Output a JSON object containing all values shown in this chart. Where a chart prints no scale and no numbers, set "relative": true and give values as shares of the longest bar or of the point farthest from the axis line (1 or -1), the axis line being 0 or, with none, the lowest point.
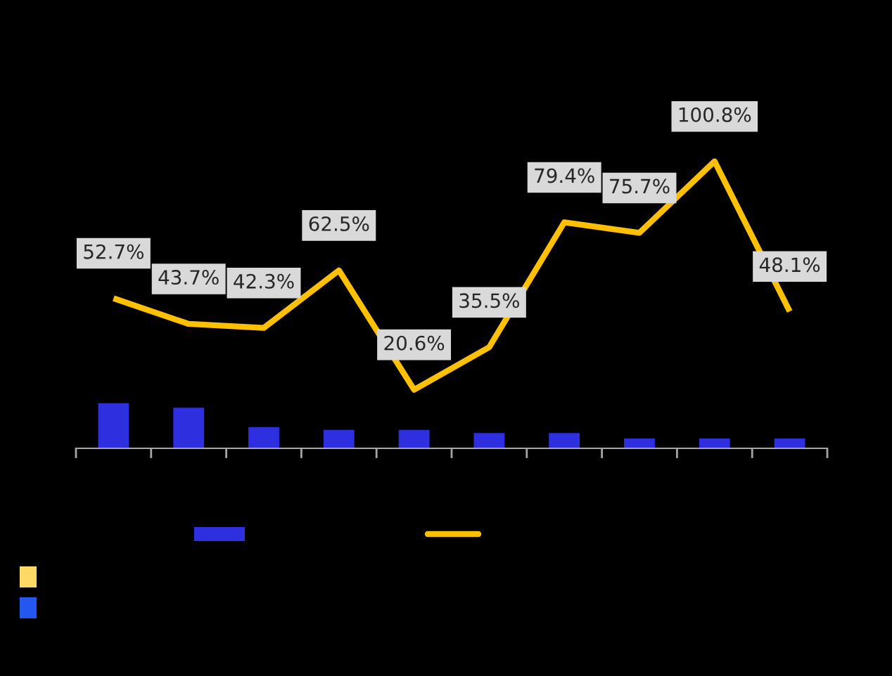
{
  "chart_data": [
    {
      "type": "bar",
      "relative": true,
      "categories": [
        null,
        null,
        null,
        null,
        null,
        null,
        null,
        null,
        null,
        null
      ],
      "color": "#2e30e0",
      "values": [
        1,
        0.9,
        0.47,
        0.41,
        0.41,
        0.34,
        0.34,
        0.22,
        0.22,
        0.22
      ]
    },
    {
      "type": "line",
      "categories": [
        null,
        null,
        null,
        null,
        null,
        null,
        null,
        null,
        null,
        null
      ],
      "color": "#ffc000",
      "line_style": "solid",
      "values": [
        52.7,
        43.7,
        42.3,
        62.5,
        20.6,
        35.5,
        79.4,
        75.7,
        100.8,
        48.1
      ],
      "value_labels": [
        "52.7%",
        "43.7%",
        "42.3%",
        "62.5%",
        "20.6%",
        "35.5%",
        "79.4%",
        "75.7%",
        "100.8%",
        "48.1%"
      ]
    }
  ]
}
